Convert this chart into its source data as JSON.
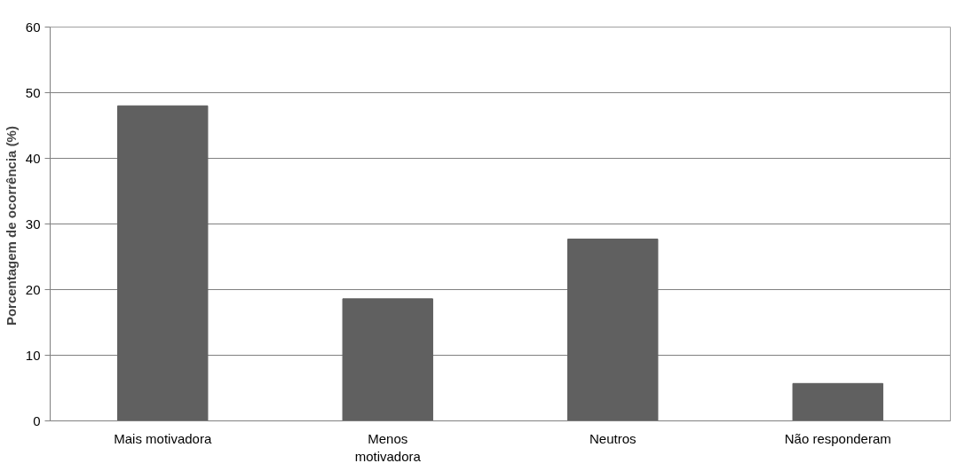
{
  "chart_data": {
    "type": "bar",
    "ylabel": "Porcentagem de ocorrência  (%)",
    "categories": [
      "Mais motivadora",
      "Menos\nmotivadora",
      "Neutros",
      "Não responderam"
    ],
    "values": [
      48.0,
      18.6,
      27.7,
      5.7
    ],
    "color": "#606060",
    "ylim": [
      0,
      60
    ],
    "yticks": [
      0,
      10,
      20,
      30,
      40,
      50,
      60
    ],
    "grid": "y"
  }
}
